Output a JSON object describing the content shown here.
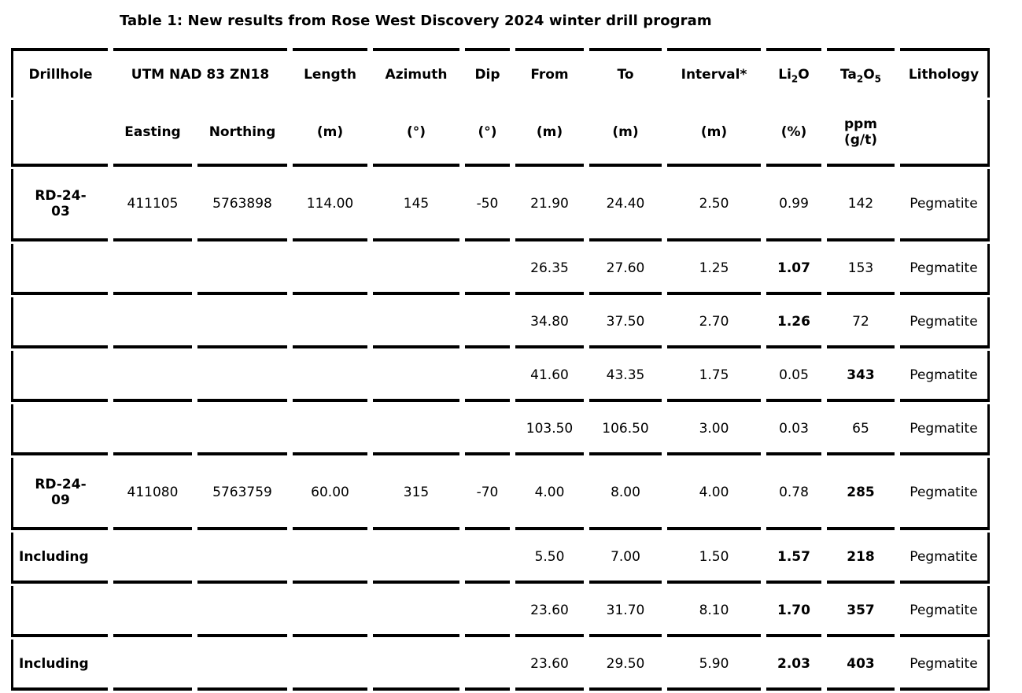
{
  "title": "Table 1: New results from Rose West Discovery 2024 winter drill program",
  "colors": {
    "text": "#000000",
    "border": "#000000",
    "background": "#ffffff"
  },
  "table": {
    "header_row1": [
      {
        "text": "Drillhole"
      },
      {
        "text": "UTM NAD 83 ZN18",
        "colspan": 2,
        "name": "utm-nad-83-zn18"
      },
      {
        "text": "Length"
      },
      {
        "text": "Azimuth"
      },
      {
        "text": "Dip"
      },
      {
        "text": "From"
      },
      {
        "text": "To"
      },
      {
        "text": "Interval*"
      },
      {
        "name": "li2o",
        "parts": [
          "Li",
          {
            "sub": "2"
          },
          "O"
        ]
      },
      {
        "name": "ta2o5",
        "parts": [
          "Ta",
          {
            "sub": "2"
          },
          "O",
          {
            "sub": "5"
          }
        ]
      },
      {
        "text": "Lithology"
      }
    ],
    "header_row2": [
      "",
      "Easting",
      "Northing",
      "(m)",
      "(°)",
      "(°)",
      "(m)",
      "(m)",
      "(m)",
      "(%)",
      "ppm\n(g/t)",
      ""
    ],
    "rows": [
      {
        "cells": [
          "RD-24-\n03",
          "411105",
          "5763898",
          "114.00",
          "145",
          "-50",
          "21.90",
          "24.40",
          "2.50",
          "0.99",
          "142",
          "Pegmatite"
        ],
        "bold_cols": [
          0
        ],
        "label_left": false
      },
      {
        "cells": [
          "",
          "",
          "",
          "",
          "",
          "",
          "26.35",
          "27.60",
          "1.25",
          "1.07",
          "153",
          "Pegmatite"
        ],
        "bold_cols": [
          9
        ],
        "label_left": false
      },
      {
        "cells": [
          "",
          "",
          "",
          "",
          "",
          "",
          "34.80",
          "37.50",
          "2.70",
          "1.26",
          "72",
          "Pegmatite"
        ],
        "bold_cols": [
          9
        ],
        "label_left": false
      },
      {
        "cells": [
          "",
          "",
          "",
          "",
          "",
          "",
          "41.60",
          "43.35",
          "1.75",
          "0.05",
          "343",
          "Pegmatite"
        ],
        "bold_cols": [
          10
        ],
        "label_left": false
      },
      {
        "cells": [
          "",
          "",
          "",
          "",
          "",
          "",
          "103.50",
          "106.50",
          "3.00",
          "0.03",
          "65",
          "Pegmatite"
        ],
        "bold_cols": [],
        "label_left": false
      },
      {
        "cells": [
          "RD-24-\n09",
          "411080",
          "5763759",
          "60.00",
          "315",
          "-70",
          "4.00",
          "8.00",
          "4.00",
          "0.78",
          "285",
          "Pegmatite"
        ],
        "bold_cols": [
          0,
          10
        ],
        "label_left": false
      },
      {
        "cells": [
          "Including",
          "",
          "",
          "",
          "",
          "",
          "5.50",
          "7.00",
          "1.50",
          "1.57",
          "218",
          "Pegmatite"
        ],
        "bold_cols": [
          0,
          9,
          10
        ],
        "label_left": true
      },
      {
        "cells": [
          "",
          "",
          "",
          "",
          "",
          "",
          "23.60",
          "31.70",
          "8.10",
          "1.70",
          "357",
          "Pegmatite"
        ],
        "bold_cols": [
          9,
          10
        ],
        "label_left": false
      },
      {
        "cells": [
          "Including",
          "",
          "",
          "",
          "",
          "",
          "23.60",
          "29.50",
          "5.90",
          "2.03",
          "403",
          "Pegmatite"
        ],
        "bold_cols": [
          0,
          9,
          10
        ],
        "label_left": true
      }
    ]
  }
}
